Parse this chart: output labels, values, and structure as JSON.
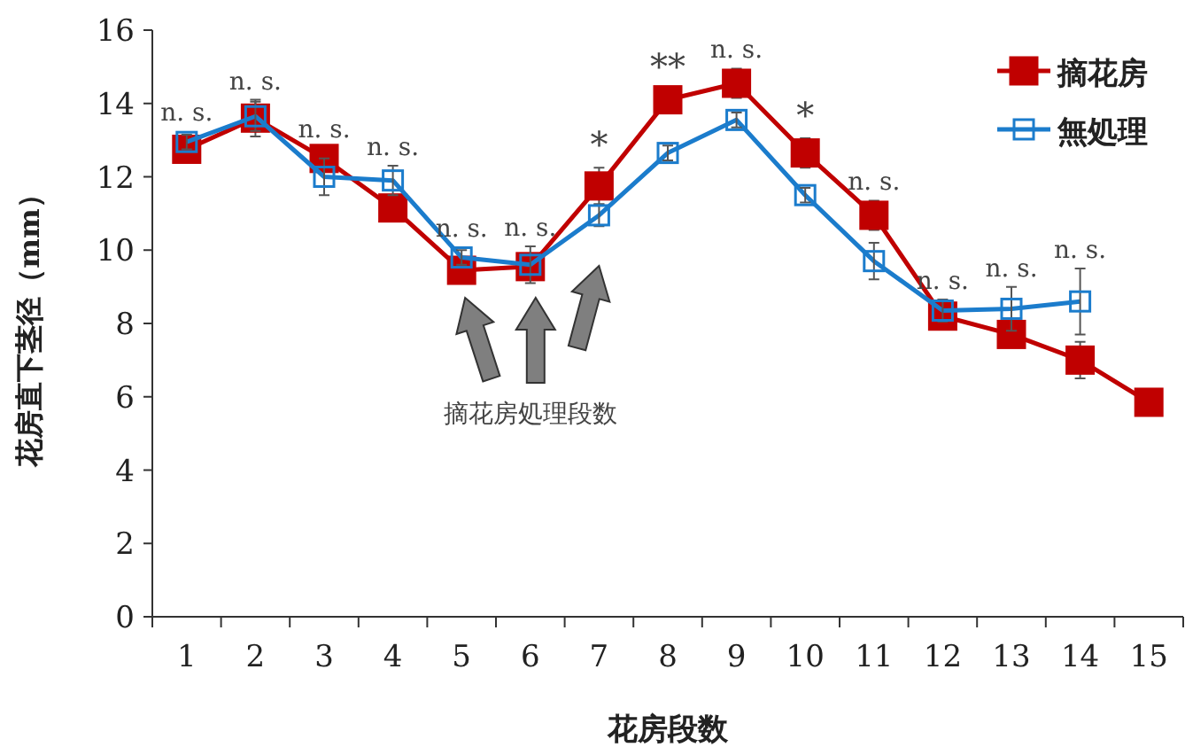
{
  "chart_data": {
    "type": "line",
    "xlabel": "花房段数",
    "ylabel": "花房直下茎径（mm）",
    "categories": [
      "1",
      "2",
      "3",
      "4",
      "5",
      "6",
      "7",
      "8",
      "9",
      "10",
      "11",
      "12",
      "13",
      "14",
      "15"
    ],
    "ylim": [
      0,
      16
    ],
    "yticks": [
      0,
      2,
      4,
      6,
      8,
      10,
      12,
      14,
      16
    ],
    "series": [
      {
        "name": "摘花房",
        "color": "#c00000",
        "marker": "square",
        "values": [
          12.75,
          13.6,
          12.5,
          11.15,
          9.45,
          9.55,
          11.75,
          14.1,
          14.55,
          12.65,
          10.95,
          8.2,
          7.7,
          7.0,
          5.85
        ],
        "errors": [
          null,
          0.5,
          null,
          null,
          null,
          null,
          0.5,
          null,
          0.4,
          0.4,
          0.4,
          null,
          null,
          0.5,
          null
        ]
      },
      {
        "name": "無処理",
        "color": "#1b7ccc",
        "marker": "square",
        "values": [
          12.95,
          13.65,
          12.0,
          11.9,
          9.8,
          9.6,
          10.95,
          12.65,
          13.55,
          11.5,
          9.7,
          8.35,
          8.4,
          8.6,
          null
        ],
        "errors": [
          0.2,
          0.4,
          0.5,
          0.4,
          0.2,
          0.5,
          0.3,
          0.2,
          0.2,
          0.2,
          0.5,
          0.3,
          0.6,
          0.9,
          null
        ]
      }
    ],
    "legend": "top right",
    "grid": false,
    "annotations": [
      {
        "text": "n. s.",
        "x": "1",
        "y": 12.95
      },
      {
        "text": "n. s.",
        "x": "2",
        "y": 13.65
      },
      {
        "text": "n. s.",
        "x": "3",
        "y": 12.5
      },
      {
        "text": "n. s.",
        "x": "4",
        "y": 11.9
      },
      {
        "text": "n. s.",
        "x": "5",
        "y": 9.8
      },
      {
        "text": "n. s.",
        "x": "6",
        "y": 9.6
      },
      {
        "text": "*",
        "x": "7",
        "y": 11.75
      },
      {
        "text": "**",
        "x": "8",
        "y": 14.1
      },
      {
        "text": "n. s.",
        "x": "9",
        "y": 14.55
      },
      {
        "text": "*",
        "x": "10",
        "y": 12.65
      },
      {
        "text": "n. s.",
        "x": "11",
        "y": 10.95
      },
      {
        "text": "n. s.",
        "x": "12",
        "y": 8.35
      },
      {
        "text": "n. s.",
        "x": "13",
        "y": 8.4
      },
      {
        "text": "n. s.",
        "x": "14",
        "y": 8.6
      },
      "摘花房処理段数"
    ]
  }
}
